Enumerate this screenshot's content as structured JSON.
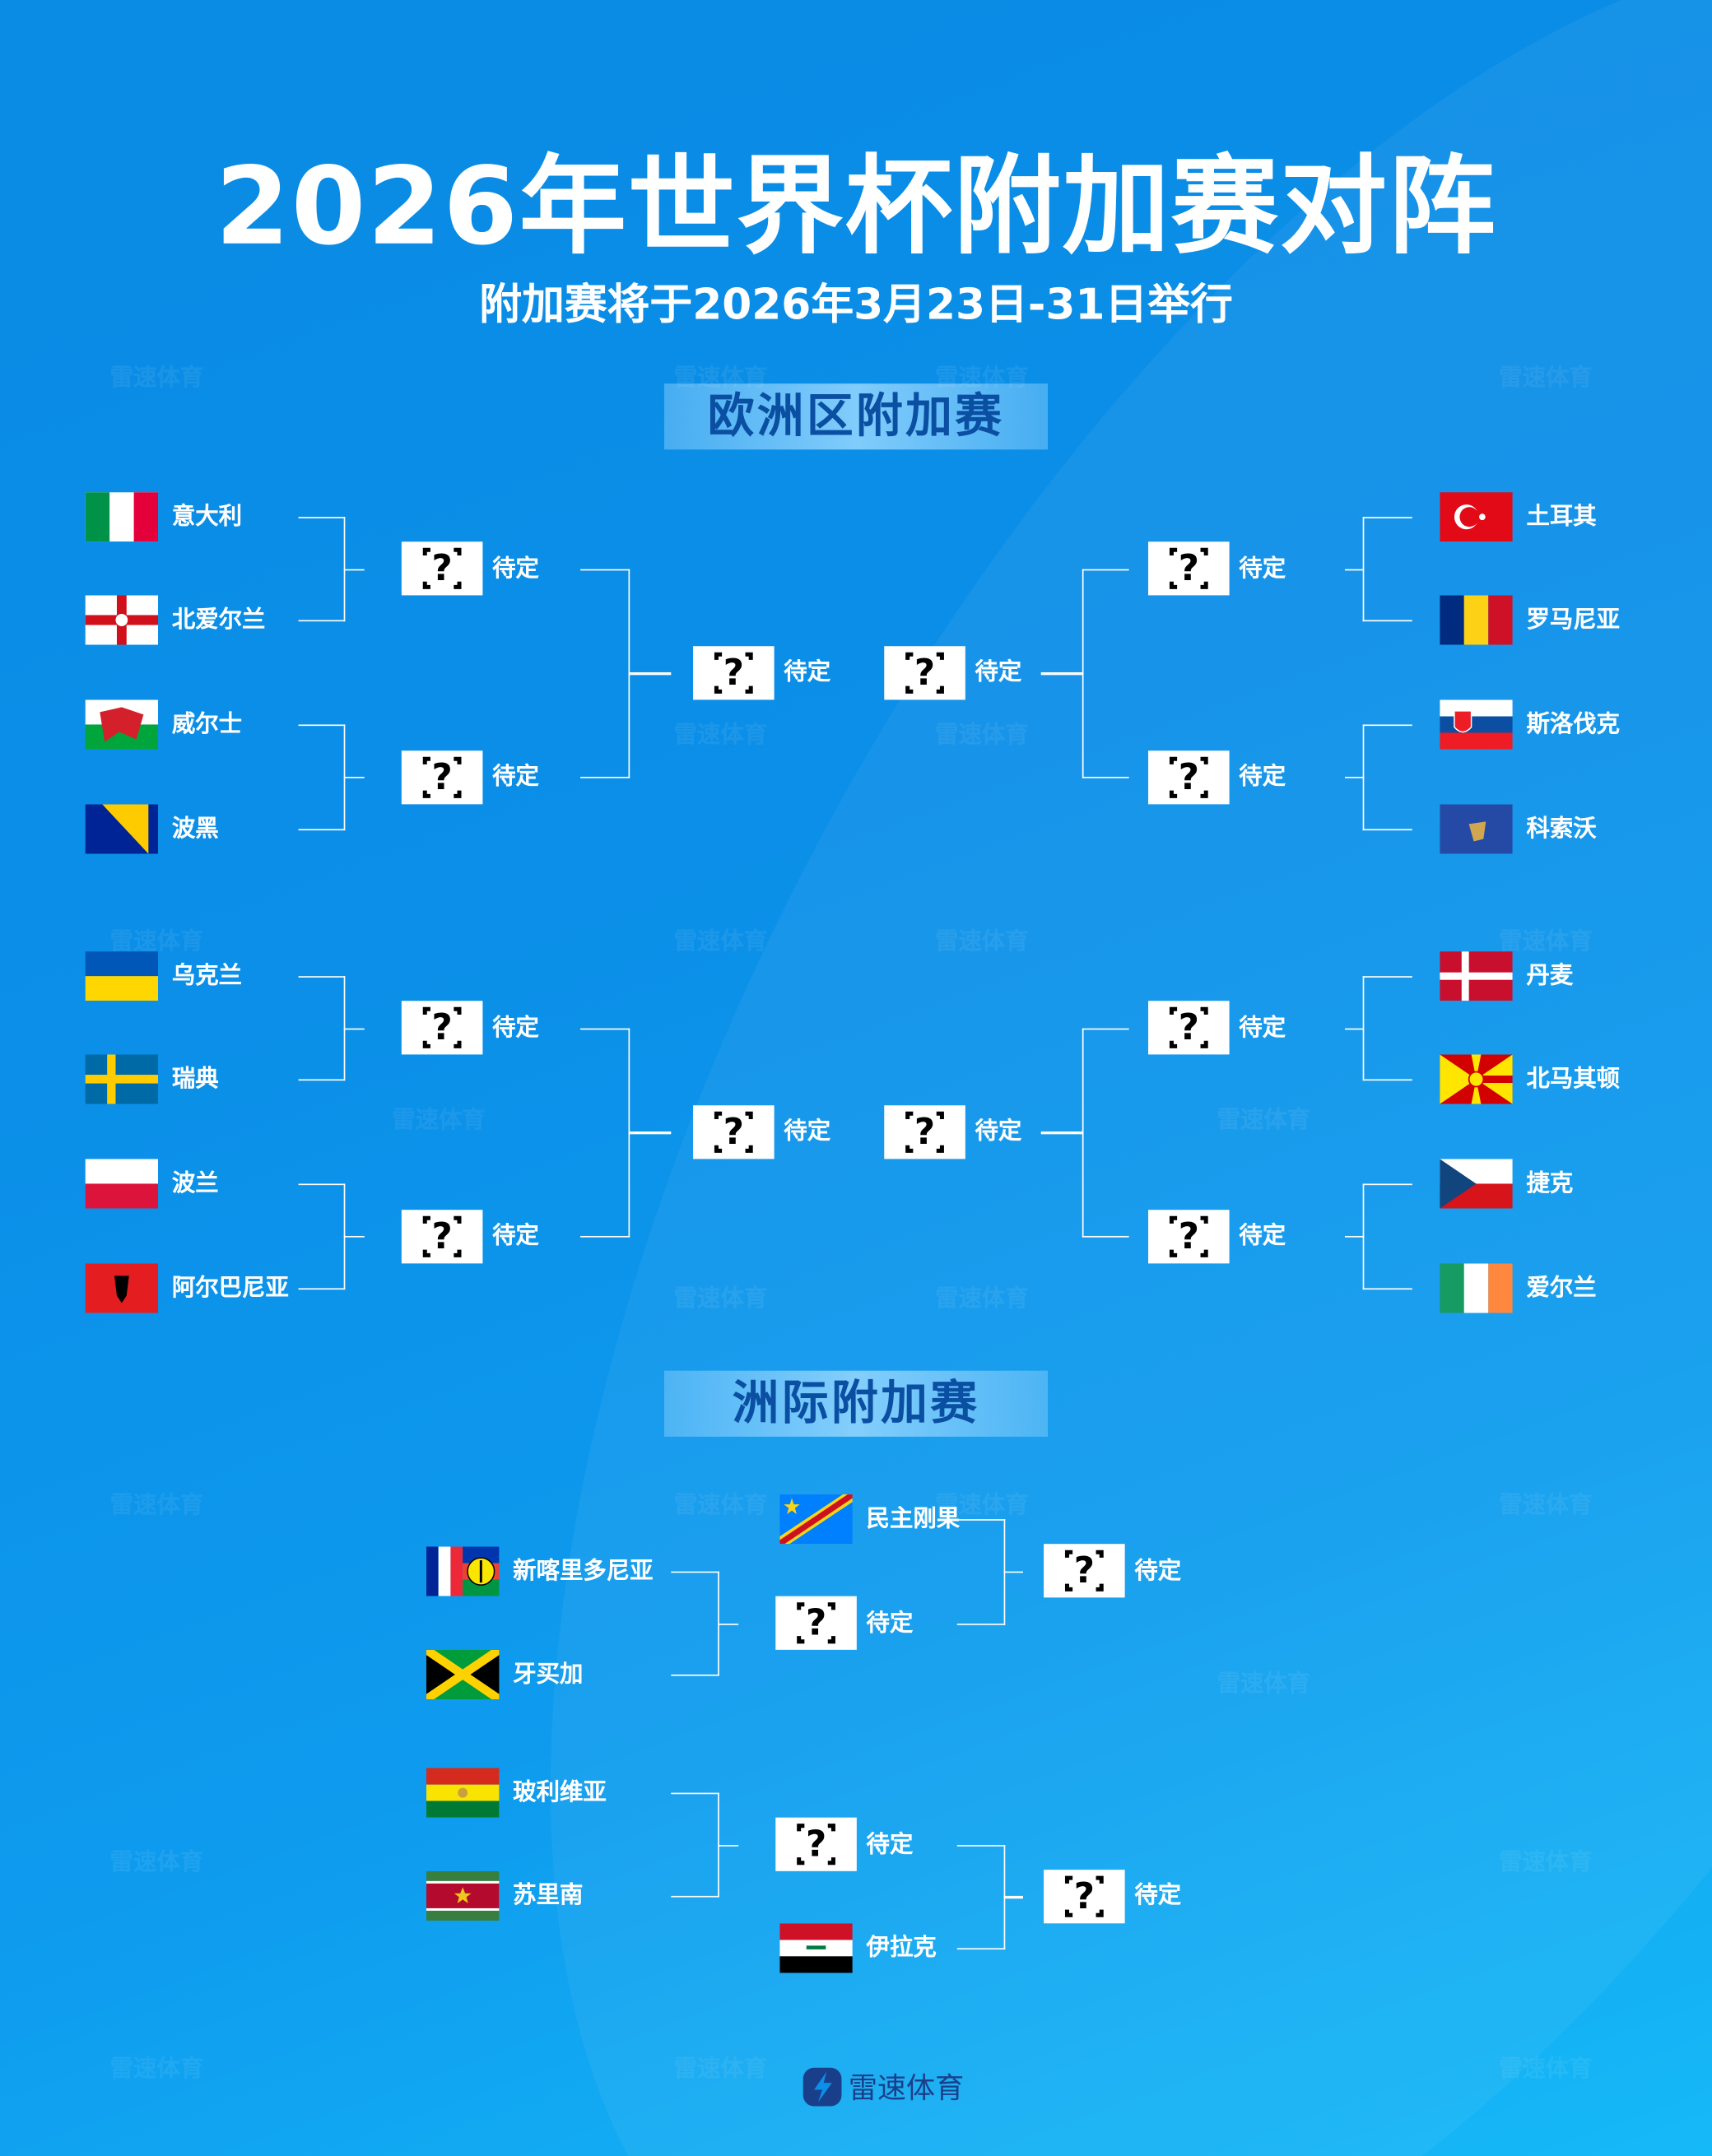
{
  "header": {
    "title": "2026年世界杯附加赛对阵",
    "subtitle": "附加赛将于2026年3月23日-31日举行"
  },
  "sections": {
    "europe": "欧洲区附加赛",
    "intercontinental": "洲际附加赛"
  },
  "placeholder": "待定",
  "placeholder_icon": "question-mark-icon",
  "logo": {
    "text": "雷速体育",
    "icon": "lightning-bolt-icon"
  },
  "watermark": "雷速体育",
  "colors": {
    "background": "#0b8fe8",
    "banner_text": "#0b4fa3",
    "line": "#ffffff"
  },
  "europe": {
    "left_top": [
      {
        "name": "意大利",
        "flag": "italy"
      },
      {
        "name": "北爱尔兰",
        "flag": "northern-ireland"
      },
      {
        "name": "威尔士",
        "flag": "wales"
      },
      {
        "name": "波黑",
        "flag": "bosnia"
      }
    ],
    "right_top": [
      {
        "name": "土耳其",
        "flag": "turkey"
      },
      {
        "name": "罗马尼亚",
        "flag": "romania"
      },
      {
        "name": "斯洛伐克",
        "flag": "slovakia"
      },
      {
        "name": "科索沃",
        "flag": "kosovo"
      }
    ],
    "left_bottom": [
      {
        "name": "乌克兰",
        "flag": "ukraine"
      },
      {
        "name": "瑞典",
        "flag": "sweden"
      },
      {
        "name": "波兰",
        "flag": "poland"
      },
      {
        "name": "阿尔巴尼亚",
        "flag": "albania"
      }
    ],
    "right_bottom": [
      {
        "name": "丹麦",
        "flag": "denmark"
      },
      {
        "name": "北马其顿",
        "flag": "north-macedonia"
      },
      {
        "name": "捷克",
        "flag": "czechia"
      },
      {
        "name": "爱尔兰",
        "flag": "ireland"
      }
    ]
  },
  "intercontinental": {
    "path1": {
      "seeded": {
        "name": "民主刚果",
        "flag": "dr-congo"
      },
      "teams": [
        {
          "name": "新喀里多尼亚",
          "flag": "new-caledonia"
        },
        {
          "name": "牙买加",
          "flag": "jamaica"
        }
      ]
    },
    "path2": {
      "seeded": {
        "name": "伊拉克",
        "flag": "iraq"
      },
      "teams": [
        {
          "name": "玻利维亚",
          "flag": "bolivia"
        },
        {
          "name": "苏里南",
          "flag": "suriname"
        }
      ]
    }
  }
}
